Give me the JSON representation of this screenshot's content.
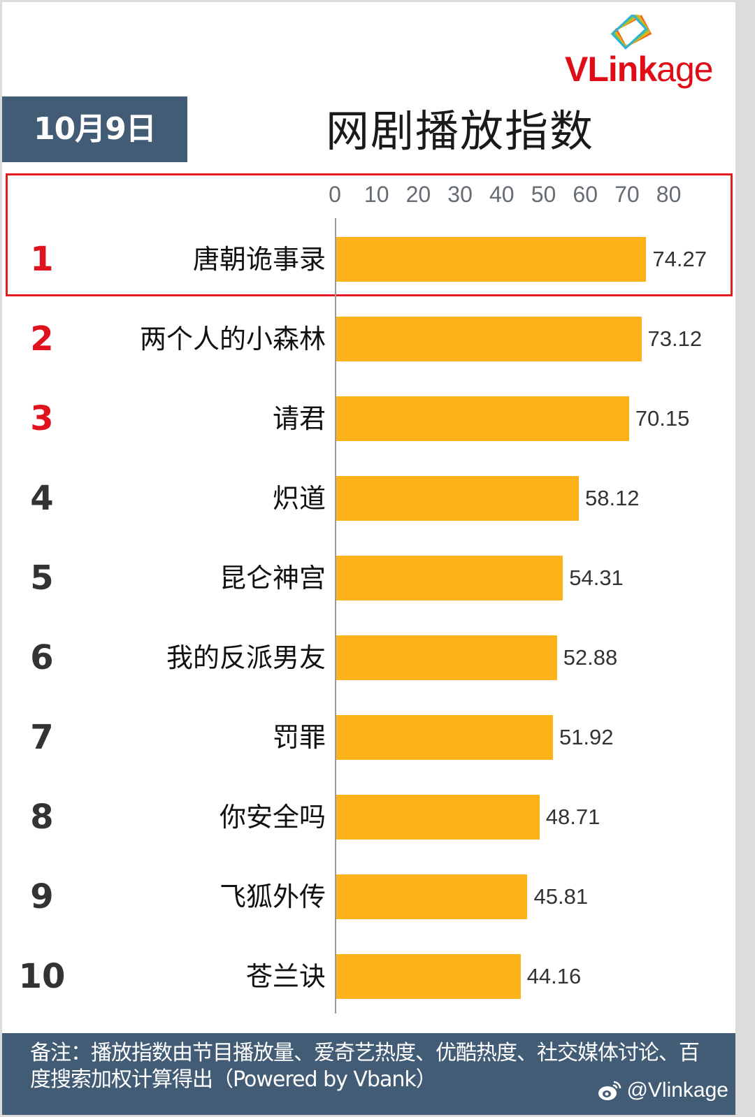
{
  "brand": {
    "logo_bold": "VLink",
    "logo_light": "age",
    "color": "#e00d17"
  },
  "header": {
    "date": "10月9日",
    "title": "网剧播放指数"
  },
  "axis": {
    "ticks": [
      "0",
      "10",
      "20",
      "30",
      "40",
      "50",
      "60",
      "70",
      "80"
    ]
  },
  "rows": [
    {
      "rank": "1",
      "name": "唐朝诡事录",
      "value": "74.27"
    },
    {
      "rank": "2",
      "name": "两个人的小森林",
      "value": "73.12"
    },
    {
      "rank": "3",
      "name": "请君",
      "value": "70.15"
    },
    {
      "rank": "4",
      "name": "炽道",
      "value": "58.12"
    },
    {
      "rank": "5",
      "name": "昆仑神宫",
      "value": "54.31"
    },
    {
      "rank": "6",
      "name": "我的反派男友",
      "value": "52.88"
    },
    {
      "rank": "7",
      "name": "罚罪",
      "value": "51.92"
    },
    {
      "rank": "8",
      "name": "你安全吗",
      "value": "48.71"
    },
    {
      "rank": "9",
      "name": "飞狐外传",
      "value": "45.81"
    },
    {
      "rank": "10",
      "name": "苍兰诀",
      "value": "44.16"
    }
  ],
  "footer": {
    "note": "备注：播放指数由节目播放量、爱奇艺热度、优酷热度、社交媒体讨论、百度搜索加权计算得出（Powered by Vbank）",
    "weibo_handle": "@Vlinkage"
  },
  "colors": {
    "bar": "#fdb21a",
    "header_bg": "#425c75",
    "highlight": "#e31c23",
    "top_rank": "#e0121d"
  },
  "chart_data": {
    "type": "bar",
    "orientation": "horizontal",
    "title": "网剧播放指数",
    "subtitle": "10月9日",
    "categories": [
      "唐朝诡事录",
      "两个人的小森林",
      "请君",
      "炽道",
      "昆仑神宫",
      "我的反派男友",
      "罚罪",
      "你安全吗",
      "飞狐外传",
      "苍兰诀"
    ],
    "values": [
      74.27,
      73.12,
      70.15,
      58.12,
      54.31,
      52.88,
      51.92,
      48.71,
      45.81,
      44.16
    ],
    "xlabel": "",
    "ylabel": "",
    "xlim": [
      0,
      80
    ],
    "xticks": [
      0,
      10,
      20,
      30,
      40,
      50,
      60,
      70,
      80
    ],
    "grid": false,
    "legend": null,
    "annotations": [
      "Rank 1 highlighted with red border",
      "Ranks 1-3 in red"
    ]
  }
}
